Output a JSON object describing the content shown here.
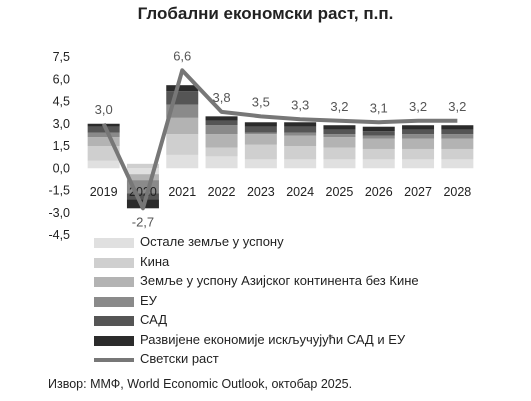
{
  "title": "Глобални економски раст, п.п.",
  "source": "Извор: ММФ, World Economic Outlook, октобар 2025.",
  "chart_data": {
    "type": "bar",
    "stacked": true,
    "categories": [
      "2019",
      "2020",
      "2021",
      "2022",
      "2023",
      "2024",
      "2025",
      "2026",
      "2027",
      "2028"
    ],
    "yticks": [
      "7,5",
      "6,0",
      "4,5",
      "3,0",
      "1,5",
      "0,0",
      "-1,5",
      "-3,0",
      "-4,5"
    ],
    "ylim": [
      -4.5,
      7.5
    ],
    "series": [
      {
        "name": "Остале земље у успону",
        "color": "#e0e0e0",
        "values": [
          0.5,
          -0.4,
          0.9,
          0.8,
          0.6,
          0.6,
          0.6,
          0.6,
          0.6,
          0.6
        ]
      },
      {
        "name": "Кина",
        "color": "#cfcfcf",
        "values": [
          1.0,
          0.3,
          1.4,
          0.6,
          1.0,
          0.9,
          0.8,
          0.7,
          0.7,
          0.7
        ]
      },
      {
        "name": "Земље у успону Азијског континента без Кине",
        "color": "#b3b3b3",
        "values": [
          0.6,
          -0.4,
          1.1,
          0.9,
          0.7,
          0.7,
          0.7,
          0.7,
          0.7,
          0.7
        ]
      },
      {
        "name": "ЕУ",
        "color": "#8a8a8a",
        "values": [
          0.3,
          -0.9,
          0.9,
          0.6,
          0.1,
          0.2,
          0.2,
          0.2,
          0.3,
          0.3
        ]
      },
      {
        "name": "САД",
        "color": "#555555",
        "values": [
          0.4,
          -0.4,
          0.9,
          0.3,
          0.4,
          0.4,
          0.3,
          0.3,
          0.3,
          0.3
        ]
      },
      {
        "name": "Развијене економије искључујући САД и ЕУ",
        "color": "#2b2b2b",
        "values": [
          0.2,
          -0.6,
          0.4,
          0.3,
          0.3,
          0.3,
          0.3,
          0.3,
          0.3,
          0.3
        ]
      }
    ],
    "line": {
      "name": "Светски раст",
      "color": "#777777",
      "values": [
        3.0,
        -2.7,
        6.6,
        3.8,
        3.5,
        3.3,
        3.2,
        3.1,
        3.2,
        3.2
      ],
      "labels": [
        "3,0",
        "-2,7",
        "6,6",
        "3,8",
        "3,5",
        "3,3",
        "3,2",
        "3,1",
        "3,2",
        "3,2"
      ]
    }
  }
}
